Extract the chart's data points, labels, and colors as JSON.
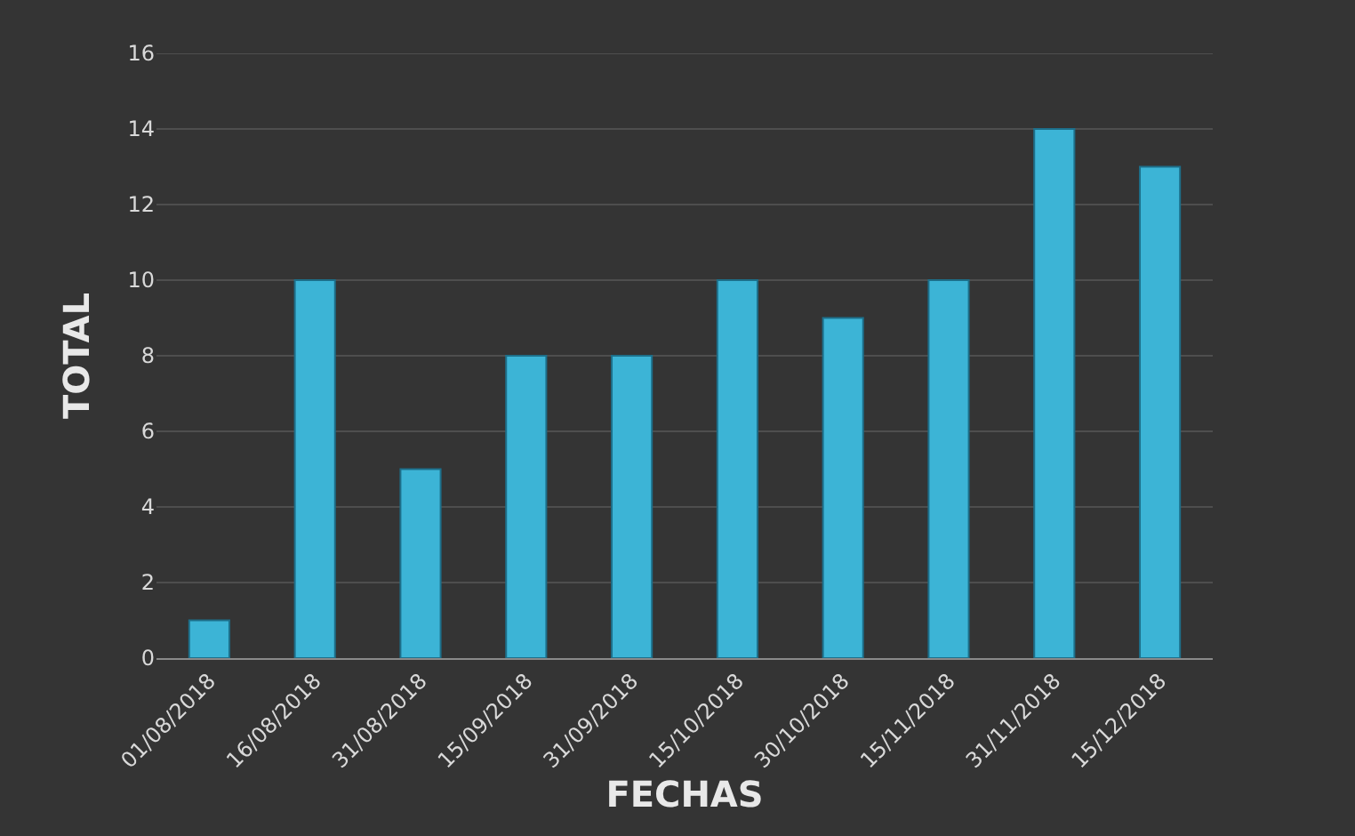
{
  "chart_data": {
    "type": "bar",
    "categories": [
      "01/08/2018",
      "16/08/2018",
      "31/08/2018",
      "15/09/2018",
      "31/09/2018",
      "15/10/2018",
      "30/10/2018",
      "15/11/2018",
      "31/11/2018",
      "15/12/2018"
    ],
    "values": [
      1,
      10,
      5,
      8,
      8,
      10,
      9,
      10,
      14,
      13
    ],
    "color": "#3cb4d6",
    "xlabel": "FECHAS",
    "ylabel": "TOTAL",
    "ylim": [
      0,
      16
    ],
    "yticks": [
      0,
      2,
      4,
      6,
      8,
      10,
      12,
      14,
      16
    ],
    "grid": "y"
  }
}
